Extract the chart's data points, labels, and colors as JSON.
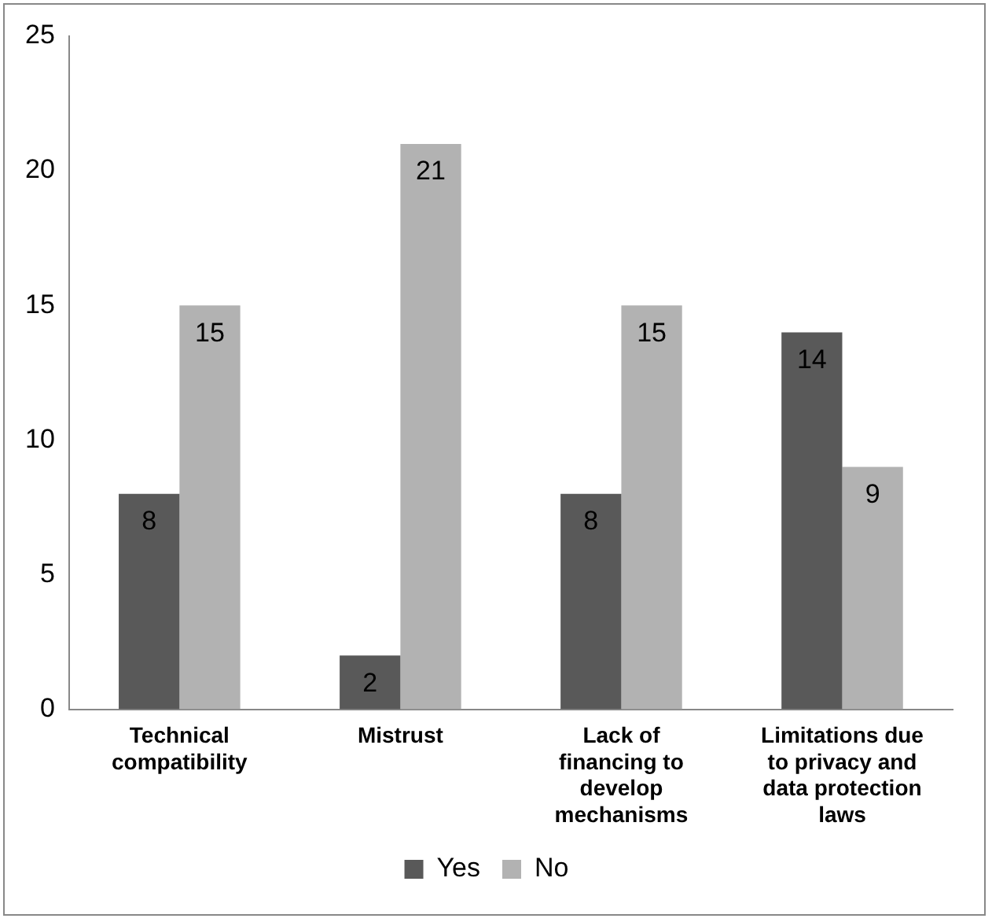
{
  "chart_data": {
    "type": "bar",
    "categories": [
      "Technical compatibility",
      "Mistrust",
      "Lack of financing to develop mechanisms",
      "Limitations due to privacy and data protection laws"
    ],
    "series": [
      {
        "name": "Yes",
        "color": "#595959",
        "values": [
          8,
          2,
          8,
          14
        ]
      },
      {
        "name": "No",
        "color": "#b2b2b2",
        "values": [
          15,
          21,
          15,
          9
        ]
      }
    ],
    "ylim": [
      0,
      25
    ],
    "yticks": [
      0,
      5,
      10,
      15,
      20,
      25
    ],
    "grid": false,
    "legend": "bottom",
    "data_labels": true
  }
}
